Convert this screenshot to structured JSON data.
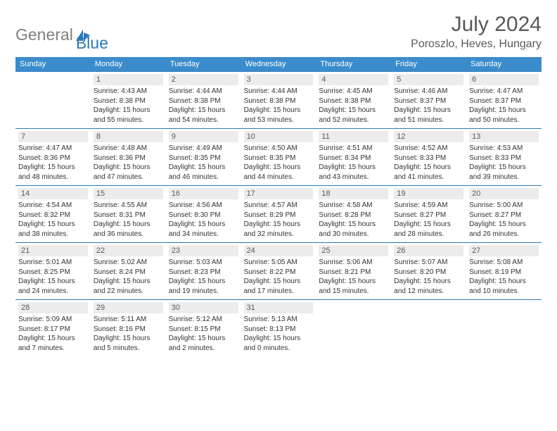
{
  "logo": {
    "text_gray": "General",
    "text_blue": "Blue"
  },
  "title": "July 2024",
  "location": "Poroszlo, Heves, Hungary",
  "colors": {
    "header_bg": "#3b8ccc",
    "header_text": "#ffffff",
    "cell_border": "#2a7ab9",
    "daynum_bg": "#ececec",
    "daynum_text": "#595959",
    "title_text": "#595959",
    "logo_gray": "#808080",
    "logo_blue": "#2a7ab9",
    "page_bg": "#ffffff"
  },
  "weekdays": [
    "Sunday",
    "Monday",
    "Tuesday",
    "Wednesday",
    "Thursday",
    "Friday",
    "Saturday"
  ],
  "cells": [
    {
      "day": "",
      "sunrise": "",
      "sunset": "",
      "daylight1": "",
      "daylight2": ""
    },
    {
      "day": "1",
      "sunrise": "Sunrise: 4:43 AM",
      "sunset": "Sunset: 8:38 PM",
      "daylight1": "Daylight: 15 hours",
      "daylight2": "and 55 minutes."
    },
    {
      "day": "2",
      "sunrise": "Sunrise: 4:44 AM",
      "sunset": "Sunset: 8:38 PM",
      "daylight1": "Daylight: 15 hours",
      "daylight2": "and 54 minutes."
    },
    {
      "day": "3",
      "sunrise": "Sunrise: 4:44 AM",
      "sunset": "Sunset: 8:38 PM",
      "daylight1": "Daylight: 15 hours",
      "daylight2": "and 53 minutes."
    },
    {
      "day": "4",
      "sunrise": "Sunrise: 4:45 AM",
      "sunset": "Sunset: 8:38 PM",
      "daylight1": "Daylight: 15 hours",
      "daylight2": "and 52 minutes."
    },
    {
      "day": "5",
      "sunrise": "Sunrise: 4:46 AM",
      "sunset": "Sunset: 8:37 PM",
      "daylight1": "Daylight: 15 hours",
      "daylight2": "and 51 minutes."
    },
    {
      "day": "6",
      "sunrise": "Sunrise: 4:47 AM",
      "sunset": "Sunset: 8:37 PM",
      "daylight1": "Daylight: 15 hours",
      "daylight2": "and 50 minutes."
    },
    {
      "day": "7",
      "sunrise": "Sunrise: 4:47 AM",
      "sunset": "Sunset: 8:36 PM",
      "daylight1": "Daylight: 15 hours",
      "daylight2": "and 48 minutes."
    },
    {
      "day": "8",
      "sunrise": "Sunrise: 4:48 AM",
      "sunset": "Sunset: 8:36 PM",
      "daylight1": "Daylight: 15 hours",
      "daylight2": "and 47 minutes."
    },
    {
      "day": "9",
      "sunrise": "Sunrise: 4:49 AM",
      "sunset": "Sunset: 8:35 PM",
      "daylight1": "Daylight: 15 hours",
      "daylight2": "and 46 minutes."
    },
    {
      "day": "10",
      "sunrise": "Sunrise: 4:50 AM",
      "sunset": "Sunset: 8:35 PM",
      "daylight1": "Daylight: 15 hours",
      "daylight2": "and 44 minutes."
    },
    {
      "day": "11",
      "sunrise": "Sunrise: 4:51 AM",
      "sunset": "Sunset: 8:34 PM",
      "daylight1": "Daylight: 15 hours",
      "daylight2": "and 43 minutes."
    },
    {
      "day": "12",
      "sunrise": "Sunrise: 4:52 AM",
      "sunset": "Sunset: 8:33 PM",
      "daylight1": "Daylight: 15 hours",
      "daylight2": "and 41 minutes."
    },
    {
      "day": "13",
      "sunrise": "Sunrise: 4:53 AM",
      "sunset": "Sunset: 8:33 PM",
      "daylight1": "Daylight: 15 hours",
      "daylight2": "and 39 minutes."
    },
    {
      "day": "14",
      "sunrise": "Sunrise: 4:54 AM",
      "sunset": "Sunset: 8:32 PM",
      "daylight1": "Daylight: 15 hours",
      "daylight2": "and 38 minutes."
    },
    {
      "day": "15",
      "sunrise": "Sunrise: 4:55 AM",
      "sunset": "Sunset: 8:31 PM",
      "daylight1": "Daylight: 15 hours",
      "daylight2": "and 36 minutes."
    },
    {
      "day": "16",
      "sunrise": "Sunrise: 4:56 AM",
      "sunset": "Sunset: 8:30 PM",
      "daylight1": "Daylight: 15 hours",
      "daylight2": "and 34 minutes."
    },
    {
      "day": "17",
      "sunrise": "Sunrise: 4:57 AM",
      "sunset": "Sunset: 8:29 PM",
      "daylight1": "Daylight: 15 hours",
      "daylight2": "and 32 minutes."
    },
    {
      "day": "18",
      "sunrise": "Sunrise: 4:58 AM",
      "sunset": "Sunset: 8:28 PM",
      "daylight1": "Daylight: 15 hours",
      "daylight2": "and 30 minutes."
    },
    {
      "day": "19",
      "sunrise": "Sunrise: 4:59 AM",
      "sunset": "Sunset: 8:27 PM",
      "daylight1": "Daylight: 15 hours",
      "daylight2": "and 28 minutes."
    },
    {
      "day": "20",
      "sunrise": "Sunrise: 5:00 AM",
      "sunset": "Sunset: 8:27 PM",
      "daylight1": "Daylight: 15 hours",
      "daylight2": "and 26 minutes."
    },
    {
      "day": "21",
      "sunrise": "Sunrise: 5:01 AM",
      "sunset": "Sunset: 8:25 PM",
      "daylight1": "Daylight: 15 hours",
      "daylight2": "and 24 minutes."
    },
    {
      "day": "22",
      "sunrise": "Sunrise: 5:02 AM",
      "sunset": "Sunset: 8:24 PM",
      "daylight1": "Daylight: 15 hours",
      "daylight2": "and 22 minutes."
    },
    {
      "day": "23",
      "sunrise": "Sunrise: 5:03 AM",
      "sunset": "Sunset: 8:23 PM",
      "daylight1": "Daylight: 15 hours",
      "daylight2": "and 19 minutes."
    },
    {
      "day": "24",
      "sunrise": "Sunrise: 5:05 AM",
      "sunset": "Sunset: 8:22 PM",
      "daylight1": "Daylight: 15 hours",
      "daylight2": "and 17 minutes."
    },
    {
      "day": "25",
      "sunrise": "Sunrise: 5:06 AM",
      "sunset": "Sunset: 8:21 PM",
      "daylight1": "Daylight: 15 hours",
      "daylight2": "and 15 minutes."
    },
    {
      "day": "26",
      "sunrise": "Sunrise: 5:07 AM",
      "sunset": "Sunset: 8:20 PM",
      "daylight1": "Daylight: 15 hours",
      "daylight2": "and 12 minutes."
    },
    {
      "day": "27",
      "sunrise": "Sunrise: 5:08 AM",
      "sunset": "Sunset: 8:19 PM",
      "daylight1": "Daylight: 15 hours",
      "daylight2": "and 10 minutes."
    },
    {
      "day": "28",
      "sunrise": "Sunrise: 5:09 AM",
      "sunset": "Sunset: 8:17 PM",
      "daylight1": "Daylight: 15 hours",
      "daylight2": "and 7 minutes."
    },
    {
      "day": "29",
      "sunrise": "Sunrise: 5:11 AM",
      "sunset": "Sunset: 8:16 PM",
      "daylight1": "Daylight: 15 hours",
      "daylight2": "and 5 minutes."
    },
    {
      "day": "30",
      "sunrise": "Sunrise: 5:12 AM",
      "sunset": "Sunset: 8:15 PM",
      "daylight1": "Daylight: 15 hours",
      "daylight2": "and 2 minutes."
    },
    {
      "day": "31",
      "sunrise": "Sunrise: 5:13 AM",
      "sunset": "Sunset: 8:13 PM",
      "daylight1": "Daylight: 15 hours",
      "daylight2": "and 0 minutes."
    },
    {
      "day": "",
      "sunrise": "",
      "sunset": "",
      "daylight1": "",
      "daylight2": ""
    },
    {
      "day": "",
      "sunrise": "",
      "sunset": "",
      "daylight1": "",
      "daylight2": ""
    },
    {
      "day": "",
      "sunrise": "",
      "sunset": "",
      "daylight1": "",
      "daylight2": ""
    }
  ]
}
